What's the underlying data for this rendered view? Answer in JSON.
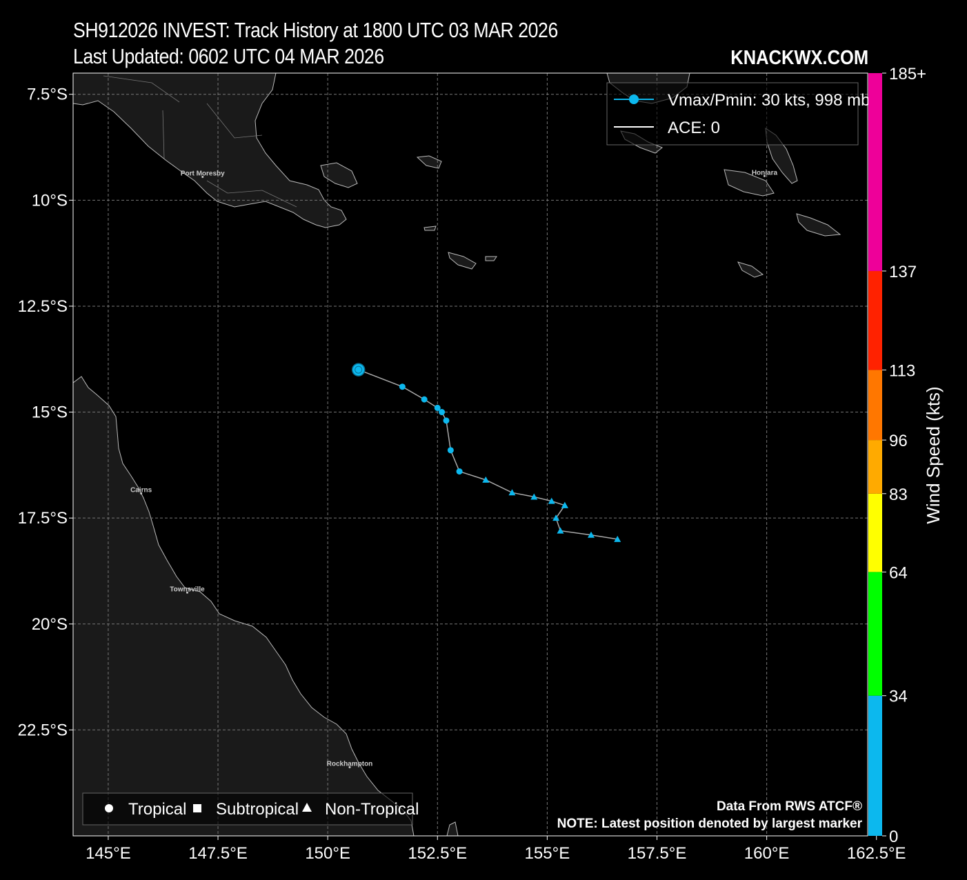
{
  "title": "SH912026 INVEST: Track History at 1800 UTC 03 MAR 2026",
  "subtitle": "Last Updated: 0602 UTC 04 MAR 2026",
  "brand": "KNACKWX.COM",
  "legend": {
    "track_label": "Vmax/Pmin: 30 kts, 998 mb",
    "ace_label": "ACE: 0",
    "tropical": "Tropical",
    "subtropical": "Subtropical",
    "non_tropical": "Non-Tropical"
  },
  "footer": {
    "source": "Data From RWS ATCF®",
    "note": "NOTE: Latest position denoted by largest marker"
  },
  "places": [
    {
      "name": "Port Moresby",
      "lon": 147.15,
      "lat": -9.45
    },
    {
      "name": "Honiara",
      "lon": 159.95,
      "lat": -9.43
    },
    {
      "name": "Cairns",
      "lon": 145.75,
      "lat": -16.92
    },
    {
      "name": "Townsville",
      "lon": 146.8,
      "lat": -19.26
    },
    {
      "name": "Rockhampton",
      "lon": 150.5,
      "lat": -23.38
    }
  ],
  "colorbar": {
    "label": "Wind Speed (kts)",
    "ticks": [
      "0",
      "34",
      "64",
      "83",
      "96",
      "113",
      "137",
      "185+"
    ],
    "tick_values": [
      0,
      34,
      64,
      83,
      96,
      113,
      137,
      185
    ],
    "colors": [
      "#0cb8ee",
      "#00ff00",
      "#ffff00",
      "#ffaa00",
      "#ff7700",
      "#ff2200",
      "#ee0099"
    ]
  },
  "chart_data": {
    "type": "scatter",
    "title": "SH912026 INVEST: Track History at 1800 UTC 03 MAR 2026",
    "xlim": [
      144.2,
      162.3
    ],
    "ylim": [
      -25.0,
      -7.0
    ],
    "x_ticks": [
      "145°E",
      "147.5°E",
      "150°E",
      "152.5°E",
      "155°E",
      "157.5°E",
      "160°E",
      "162.5°E"
    ],
    "x_tick_values": [
      145,
      147.5,
      150,
      152.5,
      155,
      157.5,
      160,
      162.5
    ],
    "y_ticks": [
      "7.5°S",
      "10°S",
      "12.5°S",
      "15°S",
      "17.5°S",
      "20°S",
      "22.5°S"
    ],
    "y_tick_values": [
      -7.5,
      -10,
      -12.5,
      -15,
      -17.5,
      -20,
      -22.5
    ],
    "grid": true,
    "track_color": "#0cb8ee",
    "series": [
      {
        "lon": [
          156.6,
          156.0,
          155.3,
          155.2,
          155.4,
          155.4,
          155.1,
          154.7,
          154.2,
          153.6,
          153.0,
          152.8,
          152.7,
          152.6,
          152.5,
          152.2,
          151.7,
          150.7
        ],
        "lat": [
          -18.0,
          -17.9,
          -17.8,
          -17.5,
          -17.2,
          -17.2,
          -17.1,
          -17.0,
          -16.9,
          -16.6,
          -16.4,
          -15.9,
          -15.2,
          -15.0,
          -14.9,
          -14.7,
          -14.4,
          -14.0
        ],
        "type": [
          "Non-Tropical",
          "Non-Tropical",
          "Non-Tropical",
          "Non-Tropical",
          "Non-Tropical",
          "Non-Tropical",
          "Non-Tropical",
          "Non-Tropical",
          "Non-Tropical",
          "Non-Tropical",
          "Tropical",
          "Tropical",
          "Tropical",
          "Tropical",
          "Tropical",
          "Tropical",
          "Tropical",
          "Tropical"
        ]
      }
    ]
  }
}
